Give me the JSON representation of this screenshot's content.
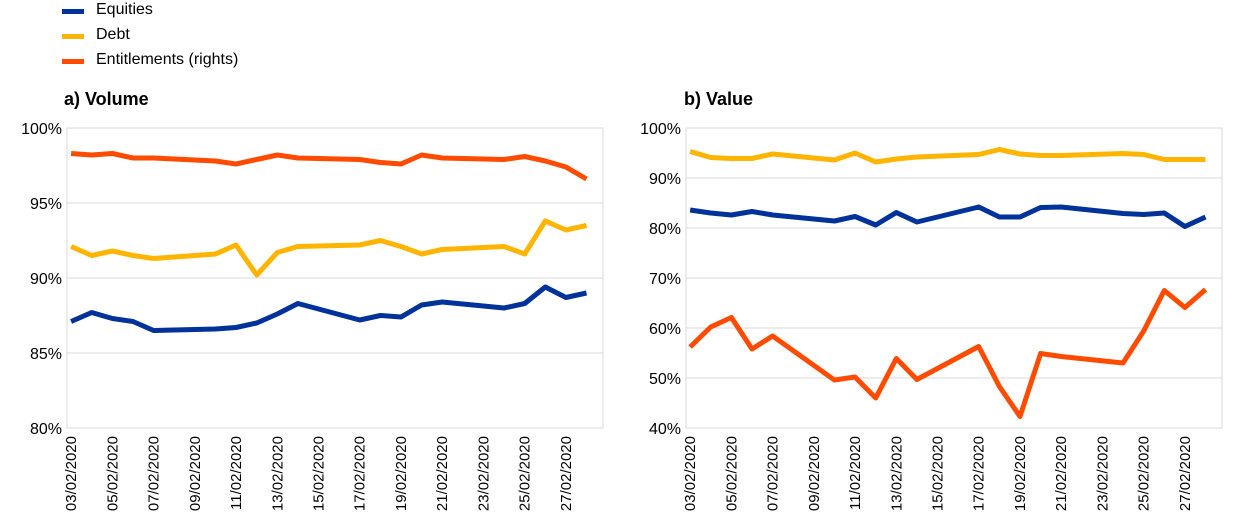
{
  "legend": [
    {
      "label": "Equities",
      "color": "#003299"
    },
    {
      "label": "Debt",
      "color": "#FFB400"
    },
    {
      "label": "Entitlements (rights)",
      "color": "#FF4B00"
    }
  ],
  "chart_data": [
    {
      "type": "line",
      "title": "a) Volume",
      "xlabel": "",
      "ylabel": "",
      "ylim": [
        80,
        100
      ],
      "yticks": [
        "80%",
        "85%",
        "90%",
        "95%",
        "100%"
      ],
      "x": [
        "03/02/2020",
        "04/02/2020",
        "05/02/2020",
        "06/02/2020",
        "07/02/2020",
        "10/02/2020",
        "11/02/2020",
        "12/02/2020",
        "13/02/2020",
        "14/02/2020",
        "17/02/2020",
        "18/02/2020",
        "19/02/2020",
        "20/02/2020",
        "21/02/2020",
        "24/02/2020",
        "25/02/2020",
        "26/02/2020",
        "27/02/2020",
        "28/02/2020"
      ],
      "x_days": [
        3,
        4,
        5,
        6,
        7,
        10,
        11,
        12,
        13,
        14,
        17,
        18,
        19,
        20,
        21,
        24,
        25,
        26,
        27,
        28
      ],
      "xtick_labels": [
        "03/02/2020",
        "05/02/2020",
        "07/02/2020",
        "09/02/2020",
        "11/02/2020",
        "13/02/2020",
        "15/02/2020",
        "17/02/2020",
        "19/02/2020",
        "21/02/2020",
        "23/02/2020",
        "25/02/2020",
        "27/02/2020"
      ],
      "xtick_days": [
        3,
        5,
        7,
        9,
        11,
        13,
        15,
        17,
        19,
        21,
        23,
        25,
        27
      ],
      "series": [
        {
          "name": "Equities",
          "color": "#003299",
          "values": [
            87.1,
            87.7,
            87.3,
            87.1,
            86.5,
            86.6,
            86.7,
            87.0,
            87.6,
            88.3,
            87.2,
            87.5,
            87.4,
            88.2,
            88.4,
            88.0,
            88.3,
            89.4,
            88.7,
            89.0
          ]
        },
        {
          "name": "Debt",
          "color": "#FFB400",
          "values": [
            92.1,
            91.5,
            91.8,
            91.5,
            91.3,
            91.6,
            92.2,
            90.2,
            91.7,
            92.1,
            92.2,
            92.5,
            92.1,
            91.6,
            91.9,
            92.1,
            91.6,
            93.8,
            93.2,
            93.5
          ]
        },
        {
          "name": "Entitlements (rights)",
          "color": "#FF4B00",
          "values": [
            98.3,
            98.2,
            98.3,
            98.0,
            98.0,
            97.8,
            97.6,
            97.9,
            98.2,
            98.0,
            97.9,
            97.7,
            97.6,
            98.2,
            98.0,
            97.9,
            98.1,
            97.8,
            97.4,
            96.6
          ]
        }
      ]
    },
    {
      "type": "line",
      "title": "b) Value",
      "xlabel": "",
      "ylabel": "",
      "ylim": [
        40,
        100
      ],
      "yticks": [
        "40%",
        "50%",
        "60%",
        "70%",
        "80%",
        "90%",
        "100%"
      ],
      "x": [
        "03/02/2020",
        "04/02/2020",
        "05/02/2020",
        "06/02/2020",
        "07/02/2020",
        "10/02/2020",
        "11/02/2020",
        "12/02/2020",
        "13/02/2020",
        "14/02/2020",
        "17/02/2020",
        "18/02/2020",
        "19/02/2020",
        "20/02/2020",
        "21/02/2020",
        "24/02/2020",
        "25/02/2020",
        "26/02/2020",
        "27/02/2020",
        "28/02/2020"
      ],
      "x_days": [
        3,
        4,
        5,
        6,
        7,
        10,
        11,
        12,
        13,
        14,
        17,
        18,
        19,
        20,
        21,
        24,
        25,
        26,
        27,
        28
      ],
      "xtick_labels": [
        "03/02/2020",
        "05/02/2020",
        "07/02/2020",
        "09/02/2020",
        "11/02/2020",
        "13/02/2020",
        "15/02/2020",
        "17/02/2020",
        "19/02/2020",
        "21/02/2020",
        "23/02/2020",
        "25/02/2020",
        "27/02/2020"
      ],
      "xtick_days": [
        3,
        5,
        7,
        9,
        11,
        13,
        15,
        17,
        19,
        21,
        23,
        25,
        27
      ],
      "series": [
        {
          "name": "Equities",
          "color": "#003299",
          "values": [
            83.6,
            83.0,
            82.6,
            83.3,
            82.6,
            81.4,
            82.3,
            80.6,
            83.1,
            81.2,
            84.2,
            82.2,
            82.2,
            84.1,
            84.2,
            82.9,
            82.7,
            83.0,
            80.3,
            82.2
          ]
        },
        {
          "name": "Debt",
          "color": "#FFB400",
          "values": [
            95.3,
            94.1,
            93.9,
            93.9,
            94.8,
            93.6,
            95.0,
            93.2,
            93.8,
            94.2,
            94.7,
            95.7,
            94.8,
            94.5,
            94.5,
            94.9,
            94.7,
            93.7,
            93.7,
            93.7
          ]
        },
        {
          "name": "Entitlements (rights)",
          "color": "#FF4B00",
          "values": [
            56.2,
            60.2,
            62.1,
            55.8,
            58.4,
            49.6,
            50.2,
            46.0,
            53.9,
            49.7,
            56.3,
            48.3,
            42.3,
            54.9,
            54.3,
            53.0,
            59.4,
            67.5,
            64.1,
            67.7
          ]
        }
      ]
    }
  ]
}
